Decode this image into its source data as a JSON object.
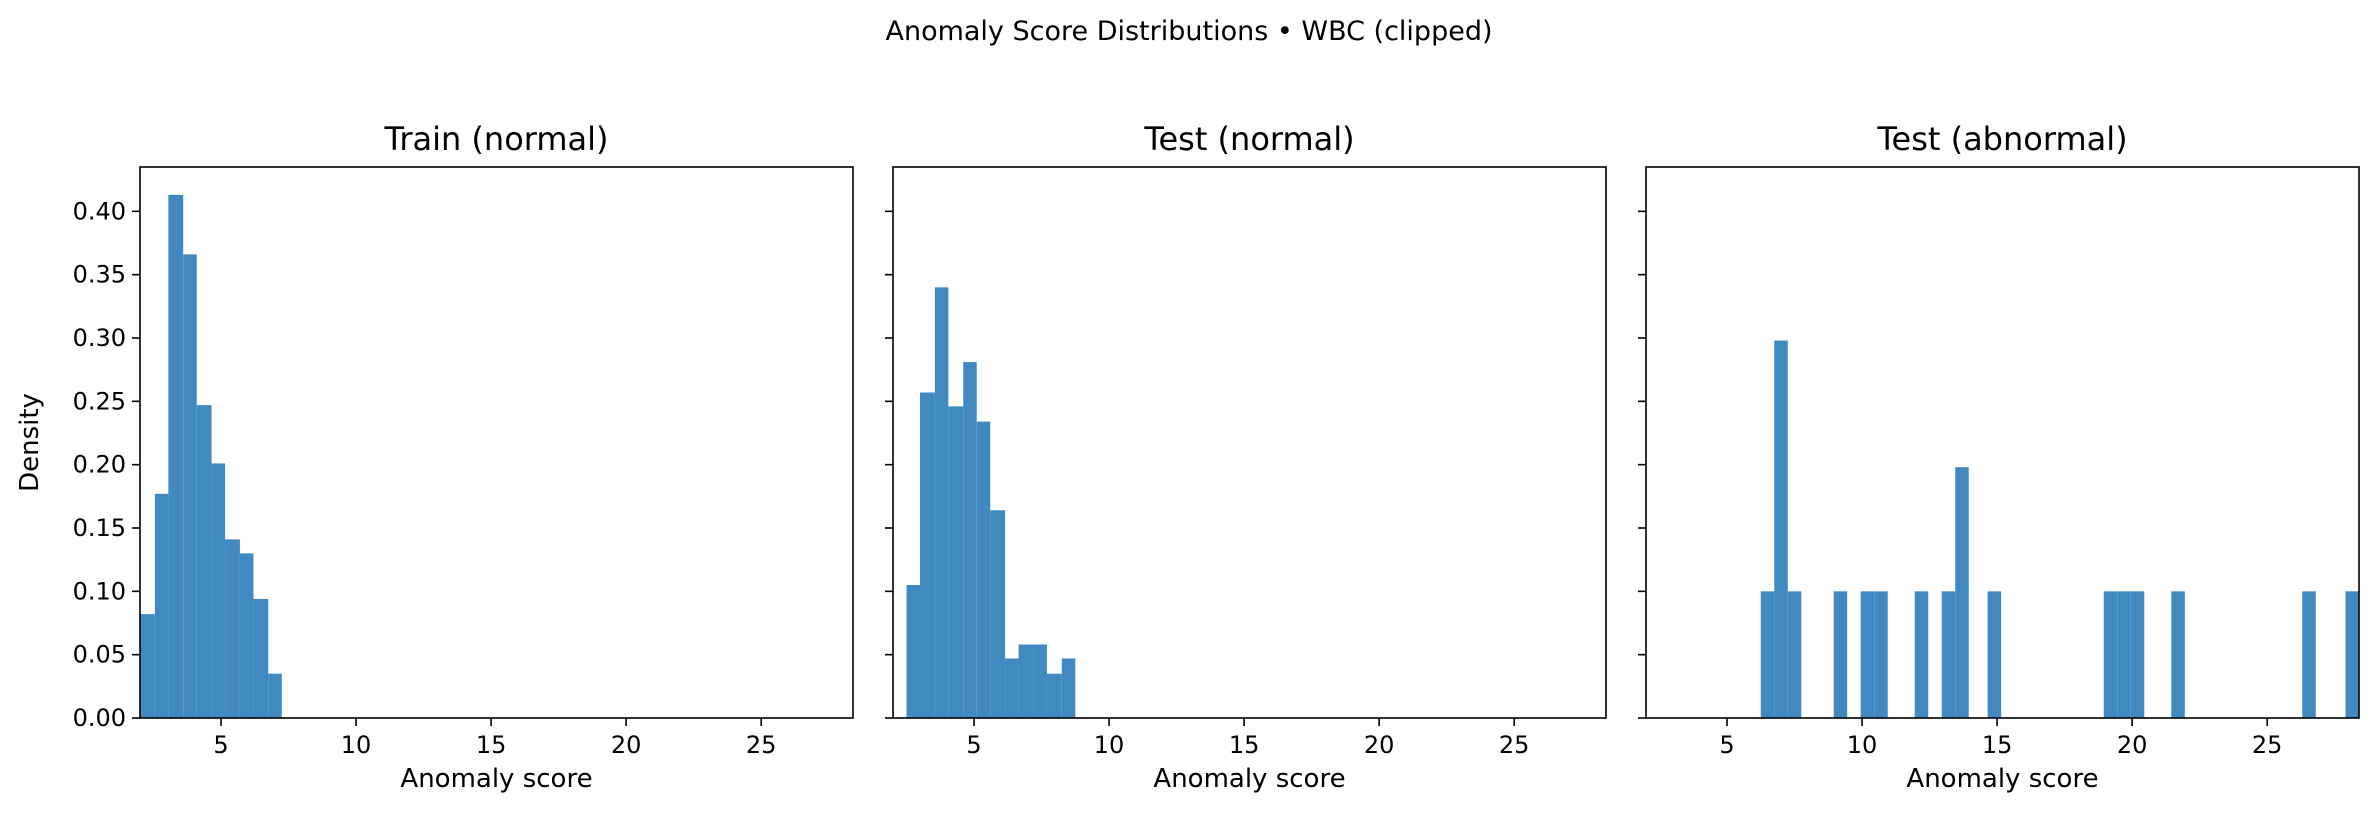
{
  "figure": {
    "suptitle": "Anomaly Score Distributions • WBC (clipped)"
  },
  "colors": {
    "bar": "#4189c1",
    "axis": "#000000",
    "background": "#ffffff"
  },
  "chart_data": [
    {
      "type": "bar",
      "title": "Train (normal)",
      "xlabel": "Anomaly score",
      "ylabel": "Density",
      "xlim": [
        2.0,
        28.4
      ],
      "ylim": [
        0,
        0.435
      ],
      "xticks": [
        5,
        10,
        15,
        20,
        25
      ],
      "yticks": [
        0.0,
        0.05,
        0.1,
        0.15,
        0.2,
        0.25,
        0.3,
        0.35,
        0.4
      ],
      "ytick_labels": [
        "0.00",
        "0.05",
        "0.10",
        "0.15",
        "0.20",
        "0.25",
        "0.30",
        "0.35",
        "0.40"
      ],
      "show_yticklabels": true,
      "bins": [
        {
          "x0": 2.0,
          "x1": 2.55,
          "value": 0.082
        },
        {
          "x0": 2.55,
          "x1": 3.05,
          "value": 0.177
        },
        {
          "x0": 3.05,
          "x1": 3.6,
          "value": 0.413
        },
        {
          "x0": 3.6,
          "x1": 4.1,
          "value": 0.366
        },
        {
          "x0": 4.1,
          "x1": 4.65,
          "value": 0.247
        },
        {
          "x0": 4.65,
          "x1": 5.15,
          "value": 0.201
        },
        {
          "x0": 5.15,
          "x1": 5.7,
          "value": 0.141
        },
        {
          "x0": 5.7,
          "x1": 6.2,
          "value": 0.13
        },
        {
          "x0": 6.2,
          "x1": 6.75,
          "value": 0.094
        },
        {
          "x0": 6.75,
          "x1": 7.25,
          "value": 0.035
        }
      ]
    },
    {
      "type": "bar",
      "title": "Test (normal)",
      "xlabel": "Anomaly score",
      "ylabel": "",
      "xlim": [
        2.0,
        28.4
      ],
      "ylim": [
        0,
        0.435
      ],
      "xticks": [
        5,
        10,
        15,
        20,
        25
      ],
      "yticks": [
        0.0,
        0.05,
        0.1,
        0.15,
        0.2,
        0.25,
        0.3,
        0.35,
        0.4
      ],
      "ytick_labels": [],
      "show_yticklabels": false,
      "bins": [
        {
          "x0": 2.5,
          "x1": 3.0,
          "value": 0.105
        },
        {
          "x0": 3.0,
          "x1": 3.55,
          "value": 0.257
        },
        {
          "x0": 3.55,
          "x1": 4.05,
          "value": 0.34
        },
        {
          "x0": 4.05,
          "x1": 4.6,
          "value": 0.246
        },
        {
          "x0": 4.6,
          "x1": 5.1,
          "value": 0.281
        },
        {
          "x0": 5.1,
          "x1": 5.6,
          "value": 0.234
        },
        {
          "x0": 5.6,
          "x1": 6.15,
          "value": 0.164
        },
        {
          "x0": 6.15,
          "x1": 6.65,
          "value": 0.047
        },
        {
          "x0": 6.65,
          "x1": 7.2,
          "value": 0.058
        },
        {
          "x0": 7.2,
          "x1": 7.7,
          "value": 0.058
        },
        {
          "x0": 7.7,
          "x1": 8.25,
          "value": 0.035
        },
        {
          "x0": 8.25,
          "x1": 8.75,
          "value": 0.047
        }
      ]
    },
    {
      "type": "bar",
      "title": "Test (abnormal)",
      "xlabel": "Anomaly score",
      "ylabel": "",
      "xlim": [
        2.0,
        28.4
      ],
      "ylim": [
        0,
        0.435
      ],
      "xticks": [
        5,
        10,
        15,
        20,
        25
      ],
      "yticks": [
        0.0,
        0.05,
        0.1,
        0.15,
        0.2,
        0.25,
        0.3,
        0.35,
        0.4
      ],
      "ytick_labels": [],
      "show_yticklabels": false,
      "bins": [
        {
          "x0": 6.25,
          "x1": 6.75,
          "value": 0.1
        },
        {
          "x0": 6.75,
          "x1": 7.25,
          "value": 0.298
        },
        {
          "x0": 7.25,
          "x1": 7.75,
          "value": 0.1
        },
        {
          "x0": 8.95,
          "x1": 9.45,
          "value": 0.1
        },
        {
          "x0": 9.95,
          "x1": 10.45,
          "value": 0.1
        },
        {
          "x0": 10.45,
          "x1": 10.95,
          "value": 0.1
        },
        {
          "x0": 11.95,
          "x1": 12.45,
          "value": 0.1
        },
        {
          "x0": 12.95,
          "x1": 13.45,
          "value": 0.1
        },
        {
          "x0": 13.45,
          "x1": 13.95,
          "value": 0.198
        },
        {
          "x0": 14.65,
          "x1": 15.15,
          "value": 0.1
        },
        {
          "x0": 18.95,
          "x1": 19.45,
          "value": 0.1
        },
        {
          "x0": 19.45,
          "x1": 19.95,
          "value": 0.1
        },
        {
          "x0": 19.95,
          "x1": 20.45,
          "value": 0.1
        },
        {
          "x0": 21.45,
          "x1": 21.95,
          "value": 0.1
        },
        {
          "x0": 26.3,
          "x1": 26.8,
          "value": 0.1
        },
        {
          "x0": 27.9,
          "x1": 28.4,
          "value": 0.1
        }
      ]
    }
  ]
}
